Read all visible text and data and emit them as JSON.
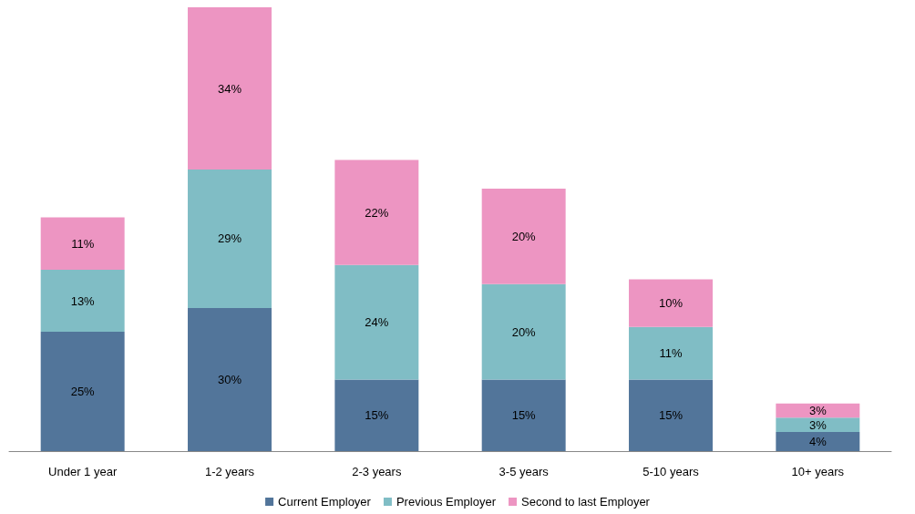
{
  "chart_data": {
    "type": "bar",
    "stacked": true,
    "categories": [
      "Under 1 year",
      "1-2 years",
      "2-3 years",
      "3-5 years",
      "5-10 years",
      "10+ years"
    ],
    "series": [
      {
        "name": "Current Employer",
        "color": "#52759a",
        "values": [
          25,
          30,
          15,
          15,
          15,
          4
        ],
        "value_labels": [
          "25%",
          "30%",
          "15%",
          "15%",
          "15%",
          "4%"
        ]
      },
      {
        "name": "Previous Employer",
        "color": "#80bdc5",
        "values": [
          13,
          29,
          24,
          20,
          11,
          3
        ],
        "value_labels": [
          "13%",
          "29%",
          "24%",
          "20%",
          "11%",
          "3%"
        ]
      },
      {
        "name": "Second to last Employer",
        "color": "#ed95c2",
        "values": [
          11,
          34,
          22,
          20,
          10,
          3
        ],
        "value_labels": [
          "11%",
          "34%",
          "22%",
          "20%",
          "10%",
          "3%"
        ]
      }
    ],
    "grid": false,
    "legend": "bottom"
  }
}
